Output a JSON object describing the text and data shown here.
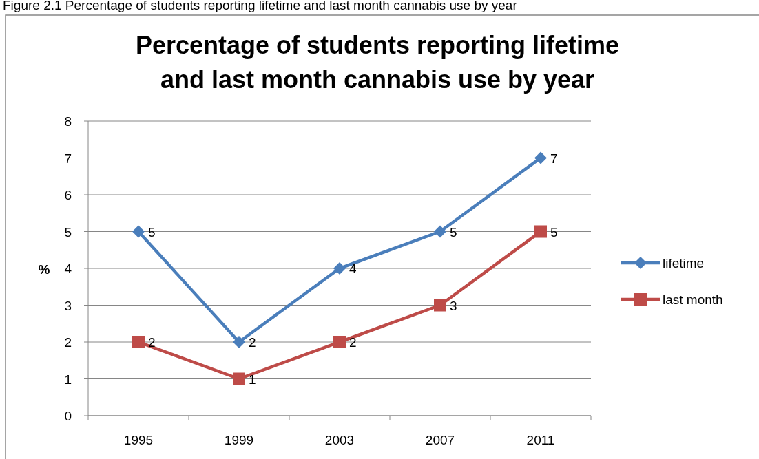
{
  "chart_data": {
    "type": "line",
    "title": "Percentage of students reporting lifetime and last month cannabis use by year",
    "annotations": [
      "Figure 2.1 Percentage of students reporting lifetime and last month cannabis use by year"
    ],
    "ylabel": "%",
    "categories": [
      "1995",
      "1999",
      "2003",
      "2007",
      "2011"
    ],
    "series": [
      {
        "name": "lifetime",
        "color": "#4a7ebb",
        "values": [
          5,
          2,
          4,
          5,
          7
        ],
        "marker": "diamond"
      },
      {
        "name": "last month",
        "color": "#be4b48",
        "values": [
          2,
          1,
          2,
          3,
          5
        ],
        "marker": "square"
      }
    ],
    "ylim": [
      0,
      8
    ],
    "yticks": [
      0,
      1,
      2,
      3,
      4,
      5,
      6,
      7,
      8
    ],
    "grid": "y",
    "legend": "right",
    "data_labels": true,
    "line_style": "solid"
  }
}
